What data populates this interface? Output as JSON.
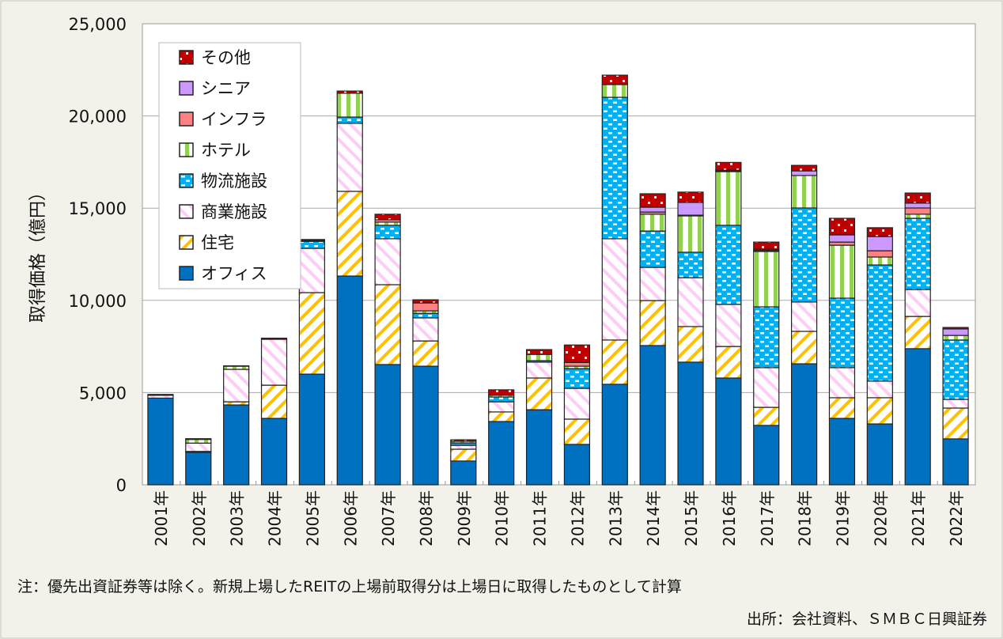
{
  "chart_data": {
    "type": "bar",
    "stacked": true,
    "title": "",
    "ylabel": "取得価格（億円）",
    "xlabel": "",
    "ylim": [
      0,
      25000
    ],
    "yticks": [
      0,
      5000,
      10000,
      15000,
      20000,
      25000
    ],
    "ytick_labels": [
      "0",
      "5,000",
      "10,000",
      "15,000",
      "20,000",
      "25,000"
    ],
    "grid": true,
    "legend_position": "top-left",
    "categories": [
      "2001年",
      "2002年",
      "2003年",
      "2004年",
      "2005年",
      "2006年",
      "2007年",
      "2008年",
      "2009年",
      "2010年",
      "2011年",
      "2012年",
      "2013年",
      "2014年",
      "2015年",
      "2016年",
      "2017年",
      "2018年",
      "2019年",
      "2020年",
      "2021年",
      "2022年"
    ],
    "series": [
      {
        "name": "オフィス",
        "color": "#0070c0",
        "pattern": "solid",
        "values": [
          4700,
          1760,
          4330,
          3600,
          6000,
          11320,
          6520,
          6430,
          1290,
          3430,
          4070,
          2190,
          5450,
          7550,
          6650,
          5790,
          3220,
          6560,
          3600,
          3300,
          7380,
          2490
        ]
      },
      {
        "name": "住宅",
        "color": "#ffc000",
        "pattern": "diagonal-stripes",
        "values": [
          0,
          50,
          170,
          1800,
          4420,
          4590,
          4330,
          1370,
          640,
          520,
          1720,
          1370,
          2400,
          2440,
          1930,
          1710,
          980,
          1760,
          1120,
          1420,
          1750,
          1670
        ]
      },
      {
        "name": "商業施設",
        "color": "#ffccf5",
        "pattern": "diagonal-stripes",
        "values": [
          150,
          450,
          1760,
          2490,
          2400,
          3690,
          2490,
          1250,
          210,
          550,
          860,
          1670,
          5490,
          1800,
          2650,
          2280,
          2150,
          1590,
          1630,
          900,
          1460,
          470
        ]
      },
      {
        "name": "物流施設",
        "color": "#00b0f0",
        "pattern": "dashes",
        "values": [
          0,
          0,
          0,
          0,
          380,
          340,
          730,
          250,
          130,
          260,
          80,
          1070,
          7670,
          1970,
          1380,
          4290,
          3300,
          5100,
          3770,
          6300,
          3860,
          3220
        ]
      },
      {
        "name": "ホテル",
        "color": "#92d050",
        "pattern": "vertical-stripes",
        "values": [
          0,
          200,
          170,
          0,
          0,
          1290,
          170,
          130,
          90,
          90,
          340,
          130,
          690,
          910,
          1970,
          2910,
          3000,
          1760,
          2870,
          430,
          220,
          250
        ]
      },
      {
        "name": "インフラ",
        "color": "#ff8080",
        "pattern": "solid",
        "values": [
          0,
          0,
          0,
          0,
          50,
          0,
          130,
          430,
          0,
          0,
          0,
          200,
          0,
          120,
          40,
          40,
          60,
          0,
          170,
          340,
          340,
          0
        ]
      },
      {
        "name": "シニア",
        "color": "#cc99ff",
        "pattern": "solid",
        "values": [
          0,
          0,
          0,
          0,
          0,
          0,
          0,
          0,
          0,
          0,
          0,
          0,
          0,
          260,
          690,
          40,
          60,
          250,
          390,
          770,
          260,
          350
        ]
      },
      {
        "name": "その他",
        "color": "#c00000",
        "pattern": "dots",
        "values": [
          50,
          40,
          20,
          60,
          50,
          120,
          300,
          170,
          80,
          300,
          260,
          950,
          510,
          730,
          560,
          420,
          390,
          300,
          900,
          480,
          550,
          80
        ]
      }
    ]
  },
  "notes": {
    "footnote": "注：優先出資証券等は除く。新規上場したREITの上場前取得分は上場日に取得したものとして計算",
    "source": "出所：会社資料、ＳＭＢＣ日興証券"
  }
}
